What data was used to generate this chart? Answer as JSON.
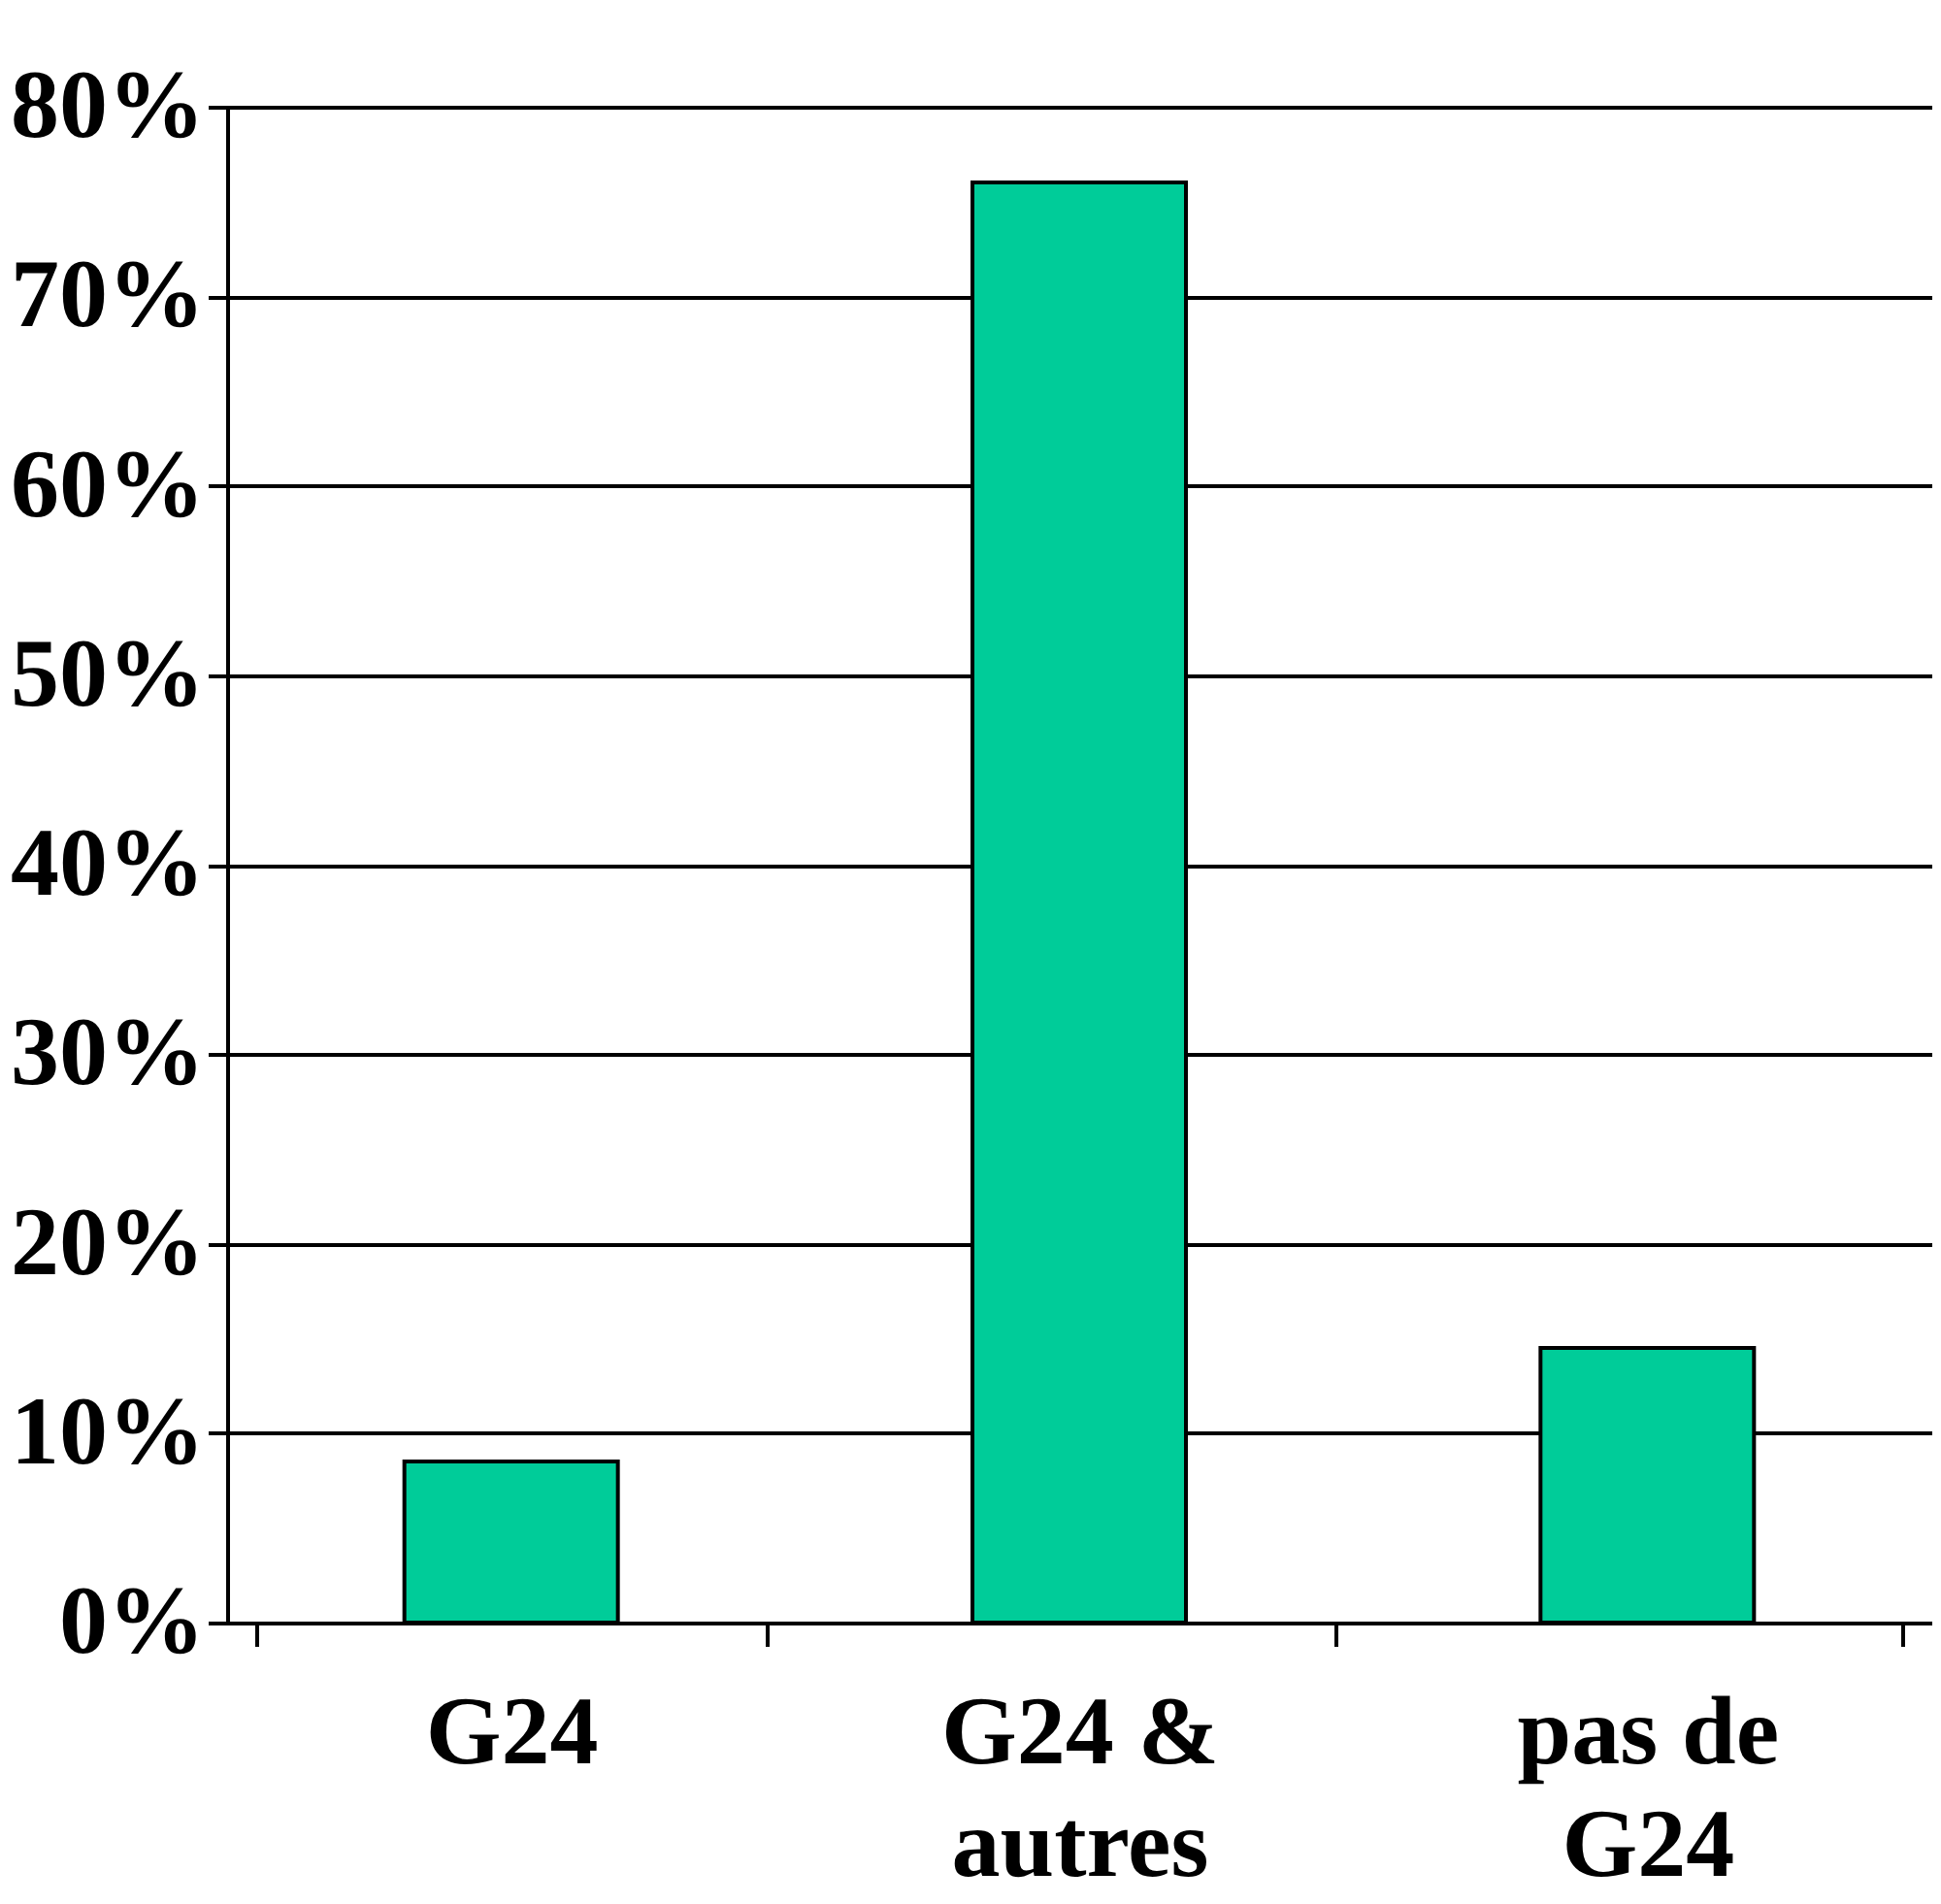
{
  "chart_data": {
    "type": "bar",
    "categories": [
      "G24",
      "G24 & autres",
      "pas de G24"
    ],
    "values": [
      8.5,
      76,
      14.5
    ],
    "color": "#00cc99",
    "ylim": [
      0,
      80
    ],
    "yticks": [
      {
        "value": 0,
        "label": "0%"
      },
      {
        "value": 10,
        "label": "10%"
      },
      {
        "value": 20,
        "label": "20%"
      },
      {
        "value": 30,
        "label": "30%"
      },
      {
        "value": 40,
        "label": "40%"
      },
      {
        "value": 50,
        "label": "50%"
      },
      {
        "value": 60,
        "label": "60%"
      },
      {
        "value": 70,
        "label": "70%"
      },
      {
        "value": 80,
        "label": "80%"
      }
    ],
    "grid": "y"
  }
}
